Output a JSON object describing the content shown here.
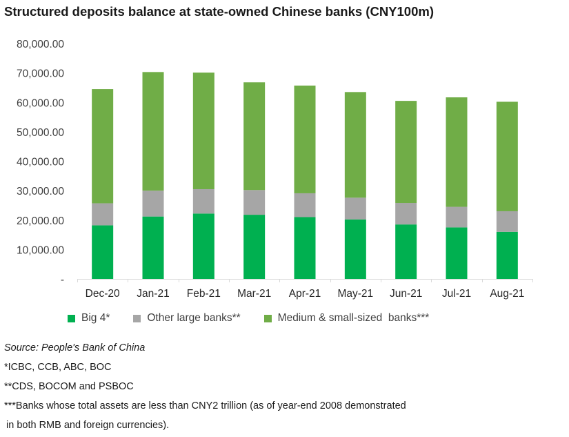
{
  "title": "Structured deposits balance at state-owned Chinese banks (CNY100m)",
  "chart_data": {
    "type": "bar",
    "stacked": true,
    "categories": [
      "Dec-20",
      "Jan-21",
      "Feb-21",
      "Mar-21",
      "Apr-21",
      "May-21",
      "Jun-21",
      "Jul-21",
      "Aug-21"
    ],
    "series": [
      {
        "name": "Big 4*",
        "color": "#00b050",
        "values": [
          18200,
          21200,
          22200,
          21800,
          21000,
          20200,
          18500,
          17500,
          16000
        ]
      },
      {
        "name": "Other large banks**",
        "color": "#a6a6a6",
        "values": [
          7500,
          8800,
          8300,
          8400,
          8100,
          7400,
          7300,
          7000,
          7000
        ]
      },
      {
        "name": "Medium & small-sized  banks***",
        "color": "#70ad47",
        "values": [
          38800,
          40300,
          39600,
          36600,
          36600,
          35900,
          34700,
          37200,
          37200
        ]
      }
    ],
    "ylim": [
      0,
      80000
    ],
    "yticks": [
      "-",
      "10,000.00",
      "20,000.00",
      "30,000.00",
      "40,000.00",
      "50,000.00",
      "60,000.00",
      "70,000.00",
      "80,000.00"
    ],
    "grid": false,
    "legend_position": "bottom"
  },
  "notes": {
    "source": "Source: People's Bank of China",
    "n1": "*ICBC, CCB, ABC, BOC",
    "n2": "**CDS, BOCOM and PSBOC",
    "n3a": "***Banks whose total assets are less than CNY2 trillion (as of year-end 2008 demonstrated",
    "n3b": " in both RMB and foreign currencies)."
  }
}
